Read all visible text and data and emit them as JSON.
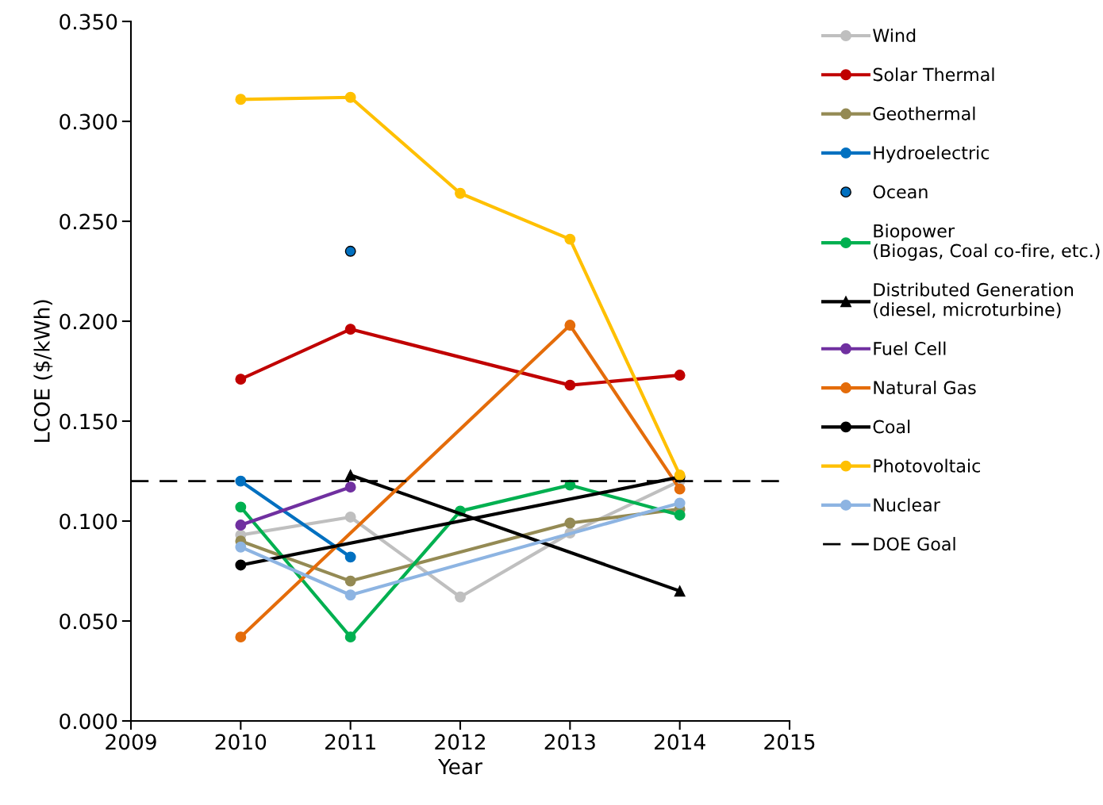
{
  "chart_data": {
    "type": "line",
    "xlabel": "Year",
    "ylabel": "LCOE ($/kWh)",
    "xlim": [
      2009,
      2015
    ],
    "xticks": [
      2009,
      2010,
      2011,
      2012,
      2013,
      2014,
      2015
    ],
    "ylim": [
      0,
      0.35
    ],
    "yticks": [
      {
        "value": 0,
        "label": "0.000"
      },
      {
        "value": 0.05,
        "label": "0.050"
      },
      {
        "value": 0.1,
        "label": "0.100"
      },
      {
        "value": 0.15,
        "label": "0.150"
      },
      {
        "value": 0.2,
        "label": "0.200"
      },
      {
        "value": 0.25,
        "label": "0.250"
      },
      {
        "value": 0.3,
        "label": "0.300"
      },
      {
        "value": 0.35,
        "label": "0.350"
      }
    ],
    "grid": false,
    "legend": "right",
    "marker": "circle",
    "line_style": "solid",
    "series": [
      {
        "name": "Wind",
        "color": "#bfbfbf",
        "x": [
          2010,
          2011,
          2012,
          2013,
          2014
        ],
        "values": [
          0.093,
          0.102,
          0.062,
          0.094,
          0.12
        ]
      },
      {
        "name": "Solar Thermal",
        "color": "#c00000",
        "x": [
          2010,
          2011,
          2013,
          2014
        ],
        "values": [
          0.171,
          0.196,
          0.168,
          0.173
        ]
      },
      {
        "name": "Geothermal",
        "color": "#948a54",
        "x": [
          2010,
          2011,
          2013,
          2014
        ],
        "values": [
          0.09,
          0.07,
          0.099,
          0.106
        ]
      },
      {
        "name": "Hydroelectric",
        "color": "#0070c0",
        "x": [
          2010,
          2011
        ],
        "values": [
          0.12,
          0.082
        ]
      },
      {
        "name": "Ocean",
        "type": "scatter",
        "color": "#0070c0",
        "x": [
          2011
        ],
        "values": [
          0.235
        ]
      },
      {
        "name": "Biopower\n(Biogas, Coal co-fire, etc.)",
        "color": "#00b050",
        "x": [
          2010,
          2011,
          2012,
          2013,
          2014
        ],
        "values": [
          0.107,
          0.042,
          0.105,
          0.118,
          0.103
        ]
      },
      {
        "name": "Distributed Generation\n(diesel, microturbine)",
        "color": "#000000",
        "marker": "triangle",
        "x": [
          2011,
          2014
        ],
        "values": [
          0.123,
          0.065
        ]
      },
      {
        "name": "Fuel Cell",
        "color": "#7030a0",
        "x": [
          2010,
          2011
        ],
        "values": [
          0.098,
          0.117
        ]
      },
      {
        "name": "Natural Gas",
        "color": "#e46c0a",
        "x": [
          2010,
          2013,
          2014
        ],
        "values": [
          0.042,
          0.198,
          0.116
        ]
      },
      {
        "name": "Coal",
        "color": "#000000",
        "x": [
          2010,
          2014
        ],
        "values": [
          0.078,
          0.122
        ]
      },
      {
        "name": "Photovoltaic",
        "color": "#ffc000",
        "x": [
          2010,
          2011,
          2012,
          2013,
          2014
        ],
        "values": [
          0.311,
          0.312,
          0.264,
          0.241,
          0.123
        ]
      },
      {
        "name": "Nuclear",
        "color": "#8db4e2",
        "x": [
          2010,
          2011,
          2014
        ],
        "values": [
          0.087,
          0.063,
          0.109
        ]
      }
    ],
    "ref_lines": [
      {
        "axis": "y",
        "value": 0.12,
        "label": "DOE Goal",
        "color": "#000000",
        "line_style": "dashed"
      }
    ]
  }
}
